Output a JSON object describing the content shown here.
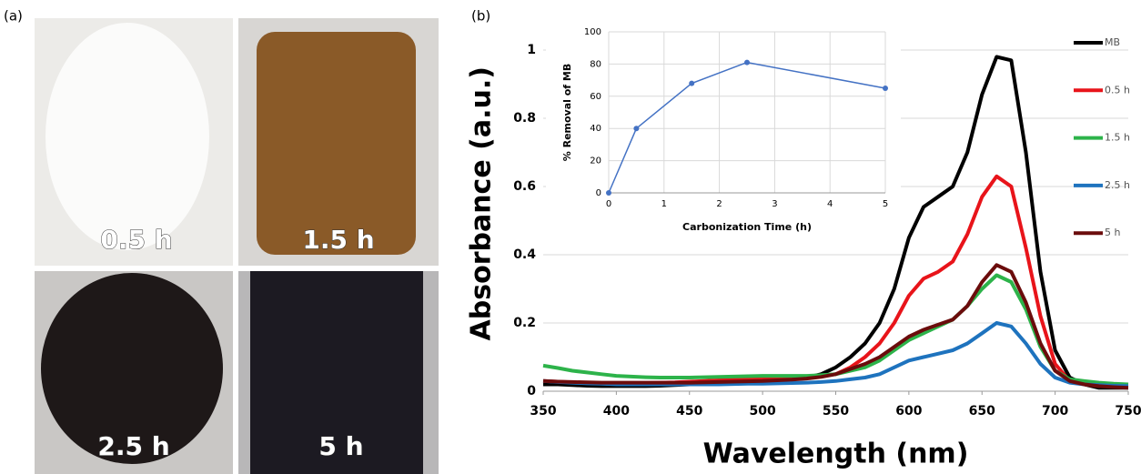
{
  "panels": {
    "a": "(a)",
    "b": "(b)"
  },
  "photos": {
    "labels": [
      "0.5 h",
      "1.5 h",
      "2.5 h",
      "5 h"
    ]
  },
  "chart_data": [
    {
      "type": "line",
      "xlabel": "Wavelength (nm)",
      "ylabel": "Absorbance (a.u.)",
      "x": [
        350,
        360,
        370,
        380,
        390,
        400,
        410,
        420,
        430,
        440,
        450,
        460,
        470,
        480,
        490,
        500,
        510,
        520,
        530,
        540,
        550,
        560,
        570,
        580,
        590,
        600,
        610,
        620,
        630,
        640,
        650,
        660,
        670,
        680,
        690,
        700,
        710,
        720,
        730,
        740,
        750
      ],
      "xlim": [
        350,
        750
      ],
      "xticks": [
        350,
        400,
        450,
        500,
        550,
        600,
        650,
        700,
        750
      ],
      "ylim": [
        0,
        1.1
      ],
      "yticks": [
        0,
        0.2,
        0.4,
        0.6,
        0.8,
        1
      ],
      "grid": true,
      "legend": "right",
      "series": [
        {
          "name": "MB",
          "color": "#000000",
          "values": [
            0.02,
            0.02,
            0.018,
            0.016,
            0.015,
            0.015,
            0.015,
            0.015,
            0.016,
            0.018,
            0.02,
            0.022,
            0.024,
            0.026,
            0.028,
            0.03,
            0.032,
            0.035,
            0.04,
            0.05,
            0.07,
            0.1,
            0.14,
            0.2,
            0.3,
            0.45,
            0.54,
            0.57,
            0.6,
            0.7,
            0.87,
            0.98,
            0.97,
            0.7,
            0.35,
            0.12,
            0.04,
            0.02,
            0.01,
            0.01,
            0.01
          ]
        },
        {
          "name": "0.5 h",
          "color": "#e8141a",
          "values": [
            0.03,
            0.028,
            0.026,
            0.025,
            0.024,
            0.024,
            0.024,
            0.024,
            0.025,
            0.026,
            0.028,
            0.03,
            0.032,
            0.034,
            0.036,
            0.038,
            0.04,
            0.042,
            0.044,
            0.046,
            0.05,
            0.07,
            0.1,
            0.14,
            0.2,
            0.28,
            0.33,
            0.35,
            0.38,
            0.46,
            0.57,
            0.63,
            0.6,
            0.42,
            0.22,
            0.08,
            0.03,
            0.02,
            0.015,
            0.015,
            0.015
          ]
        },
        {
          "name": "1.5 h",
          "color": "#2db34a",
          "values": [
            0.075,
            0.068,
            0.06,
            0.055,
            0.05,
            0.045,
            0.043,
            0.041,
            0.04,
            0.04,
            0.04,
            0.041,
            0.042,
            0.043,
            0.044,
            0.045,
            0.045,
            0.045,
            0.045,
            0.047,
            0.05,
            0.06,
            0.07,
            0.09,
            0.12,
            0.15,
            0.17,
            0.19,
            0.21,
            0.25,
            0.3,
            0.34,
            0.32,
            0.24,
            0.13,
            0.06,
            0.035,
            0.03,
            0.025,
            0.022,
            0.02
          ]
        },
        {
          "name": "2.5 h",
          "color": "#1e73be",
          "values": [
            0.03,
            0.027,
            0.025,
            0.023,
            0.022,
            0.02,
            0.02,
            0.02,
            0.02,
            0.02,
            0.02,
            0.02,
            0.02,
            0.021,
            0.022,
            0.022,
            0.023,
            0.024,
            0.025,
            0.027,
            0.03,
            0.035,
            0.04,
            0.05,
            0.07,
            0.09,
            0.1,
            0.11,
            0.12,
            0.14,
            0.17,
            0.2,
            0.19,
            0.14,
            0.08,
            0.04,
            0.025,
            0.02,
            0.018,
            0.016,
            0.015
          ]
        },
        {
          "name": "5 h",
          "color": "#6b0c0c",
          "values": [
            0.03,
            0.028,
            0.027,
            0.026,
            0.025,
            0.025,
            0.025,
            0.025,
            0.025,
            0.025,
            0.025,
            0.026,
            0.027,
            0.028,
            0.029,
            0.03,
            0.032,
            0.034,
            0.037,
            0.042,
            0.05,
            0.065,
            0.08,
            0.1,
            0.13,
            0.16,
            0.18,
            0.195,
            0.21,
            0.25,
            0.32,
            0.37,
            0.35,
            0.26,
            0.14,
            0.06,
            0.03,
            0.02,
            0.015,
            0.012,
            0.01
          ]
        }
      ]
    },
    {
      "type": "line",
      "xlabel": "Carbonization Time (h)",
      "ylabel": "% Removal of MB",
      "x": [
        0,
        0.5,
        1.5,
        2.5,
        5
      ],
      "xlim": [
        0,
        5
      ],
      "xticks": [
        0,
        1,
        2,
        3,
        4,
        5
      ],
      "ylim": [
        0,
        100
      ],
      "yticks": [
        0,
        20,
        40,
        60,
        80,
        100
      ],
      "grid": true,
      "markers": true,
      "series": [
        {
          "color": "#4472c4",
          "values": [
            0,
            40,
            68,
            81,
            65
          ]
        }
      ]
    }
  ]
}
